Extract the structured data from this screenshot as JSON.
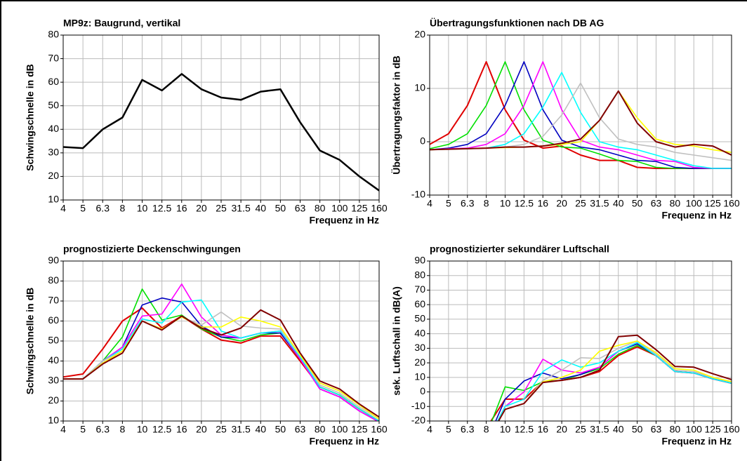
{
  "chart_data": [
    {
      "type": "line",
      "title": "MP9z: Baugrund, vertikal",
      "x_label": "Frequenz in Hz",
      "y_label": "Schwingschnelle in dB",
      "categories": [
        "4",
        "5",
        "6.3",
        "8",
        "10",
        "12.5",
        "16",
        "20",
        "25",
        "31.5",
        "40",
        "50",
        "63",
        "80",
        "100",
        "125",
        "160"
      ],
      "ylim": [
        10,
        80
      ],
      "yticks": [
        10,
        20,
        30,
        40,
        50,
        60,
        70,
        80
      ],
      "grid": true,
      "series": [
        {
          "color": "#000000",
          "values": [
            32.5,
            32,
            40,
            45,
            61,
            56.5,
            63.5,
            57,
            53.5,
            52.5,
            56,
            57,
            43,
            31,
            27,
            20,
            14
          ]
        }
      ]
    },
    {
      "type": "line",
      "title": "Übertragungsfunktionen nach DB AG",
      "x_label": "Frequenz in Hz",
      "y_label": "Übertragungsfaktor in dB",
      "categories": [
        "4",
        "5",
        "6.3",
        "8",
        "10",
        "12.5",
        "16",
        "20",
        "25",
        "31.5",
        "40",
        "50",
        "63",
        "80",
        "100",
        "125",
        "160"
      ],
      "ylim": [
        -10,
        20
      ],
      "yticks": [
        -10,
        0,
        10,
        20
      ],
      "grid": true,
      "series": [
        {
          "color": "#e00000",
          "values": [
            -0.5,
            1.5,
            6.8,
            15,
            6,
            0.3,
            -1.2,
            -0.8,
            -2.5,
            -3.5,
            -3.5,
            -4.8,
            -5,
            -5,
            -5,
            -5,
            -5
          ]
        },
        {
          "color": "#00e000",
          "values": [
            -1.3,
            -0.5,
            1.5,
            6.8,
            15,
            6,
            0.3,
            -1,
            -1.2,
            -2.3,
            -3.5,
            -3.7,
            -4.8,
            -5,
            -5,
            -5,
            -5
          ]
        },
        {
          "color": "#0000c0",
          "values": [
            -1.5,
            -1.2,
            -0.5,
            1.5,
            6.8,
            15,
            6,
            0.3,
            -1,
            -1.5,
            -2.5,
            -3.5,
            -3.7,
            -4.8,
            -5,
            -5,
            -5
          ]
        },
        {
          "color": "#ff00ff",
          "values": [
            -1.5,
            -1.3,
            -1.2,
            -0.5,
            1.5,
            6.8,
            15,
            6,
            0.3,
            -1,
            -1.5,
            -2.5,
            -3.5,
            -3.7,
            -4.8,
            -5,
            -5
          ]
        },
        {
          "color": "#00ffff",
          "values": [
            -1.5,
            -1.4,
            -1.3,
            -1.2,
            -0.5,
            1.5,
            6.5,
            13,
            5.5,
            0,
            -1,
            -1.5,
            -2.5,
            -3.5,
            -4.5,
            -5,
            -5
          ]
        },
        {
          "color": "#c0c0c0",
          "values": [
            -1.5,
            -1.4,
            -1.3,
            -1.2,
            -1,
            -0.5,
            1,
            5,
            11,
            4.5,
            0.5,
            -0.5,
            -1,
            -2,
            -2.5,
            -3,
            -3.5
          ]
        },
        {
          "color": "#ffff00",
          "values": [
            -1.5,
            -1.4,
            -1.3,
            -1.2,
            -1.1,
            -1,
            -0.8,
            -0.5,
            0,
            4,
            9.5,
            4.5,
            0.5,
            -0.5,
            -0.8,
            -1.5,
            -2
          ]
        },
        {
          "color": "#800000",
          "values": [
            -1.5,
            -1.4,
            -1.3,
            -1.2,
            -1,
            -1,
            -0.8,
            -0.3,
            0.5,
            4,
            9.5,
            3.5,
            0,
            -1,
            -0.5,
            -0.8,
            -2.5
          ]
        }
      ]
    },
    {
      "type": "line",
      "title": "prognostizierte Deckenschwingungen",
      "x_label": "Frequenz in Hz",
      "y_label": "Schwingschnelle in dB",
      "categories": [
        "4",
        "5",
        "6.3",
        "8",
        "10",
        "12.5",
        "16",
        "20",
        "25",
        "31.5",
        "40",
        "50",
        "63",
        "80",
        "100",
        "125",
        "160"
      ],
      "ylim": [
        10,
        90
      ],
      "yticks": [
        10,
        20,
        30,
        40,
        50,
        60,
        70,
        80,
        90
      ],
      "grid": true,
      "series": [
        {
          "color": "#e00000",
          "values": [
            32,
            33.5,
            46,
            60,
            66.5,
            56.5,
            62.5,
            56,
            50.5,
            49,
            52.5,
            52.5,
            40,
            27,
            23,
            16,
            10
          ]
        },
        {
          "color": "#00e000",
          "values": [
            31,
            31,
            40,
            52,
            76,
            60.5,
            63,
            56,
            52,
            50,
            53,
            54,
            41,
            27,
            23,
            16,
            10
          ]
        },
        {
          "color": "#0000c0",
          "values": [
            31,
            31,
            40,
            47,
            68,
            71.5,
            69.5,
            57.5,
            52,
            51.5,
            54,
            54,
            41,
            26,
            22,
            15,
            9.5
          ]
        },
        {
          "color": "#ff00ff",
          "values": [
            31,
            31,
            40,
            47,
            62.5,
            63.5,
            78.5,
            62,
            53,
            51.5,
            54,
            55,
            41,
            26,
            22,
            15,
            9.5
          ]
        },
        {
          "color": "#00ffff",
          "values": [
            31,
            31,
            40,
            46,
            61,
            59,
            69.5,
            70.5,
            55,
            51.5,
            54,
            55,
            42,
            27,
            23,
            16,
            10
          ]
        },
        {
          "color": "#c0c0c0",
          "values": [
            31,
            31,
            40,
            45,
            60,
            56,
            62,
            58,
            64.5,
            57.5,
            56.5,
            56,
            43,
            28,
            24,
            17,
            11
          ]
        },
        {
          "color": "#ffff00",
          "values": [
            31,
            31,
            39,
            45,
            60,
            56,
            62,
            57,
            57,
            62,
            60,
            57,
            43,
            29,
            25,
            18,
            11
          ]
        },
        {
          "color": "#800000",
          "values": [
            31,
            31,
            38.5,
            44,
            60,
            55.5,
            62.5,
            56.5,
            53,
            56.5,
            65.5,
            60.5,
            44,
            30,
            26,
            18.5,
            12
          ]
        }
      ]
    },
    {
      "type": "line",
      "title": "prognostizierter sekundärer Luftschall",
      "x_label": "Frequenz in Hz",
      "y_label": "sek. Luftschall in dB(A)",
      "categories": [
        "4",
        "5",
        "6.3",
        "8",
        "10",
        "12.5",
        "16",
        "20",
        "25",
        "31.5",
        "40",
        "50",
        "63",
        "80",
        "100",
        "125",
        "160"
      ],
      "ylim": [
        -20,
        90
      ],
      "yticks": [
        -20,
        -10,
        0,
        10,
        20,
        30,
        40,
        50,
        60,
        70,
        80,
        90
      ],
      "grid": true,
      "series": [
        {
          "color": "#e00000",
          "values": [
            null,
            null,
            null,
            -25,
            -5,
            -5,
            7,
            8,
            10,
            14,
            25,
            31,
            25,
            14,
            13,
            9,
            6
          ]
        },
        {
          "color": "#00e000",
          "values": [
            null,
            null,
            null,
            -30,
            3.5,
            1,
            7,
            8,
            12,
            16,
            26,
            32,
            25,
            14,
            13,
            9,
            6
          ]
        },
        {
          "color": "#0000c0",
          "values": [
            null,
            null,
            null,
            -35,
            -5,
            7.5,
            13,
            9,
            12,
            17,
            28,
            33,
            25,
            14,
            13,
            9,
            6
          ]
        },
        {
          "color": "#ff00ff",
          "values": [
            null,
            null,
            null,
            -35,
            -10,
            0,
            22.5,
            15,
            13,
            17,
            28,
            34,
            25,
            14,
            13,
            9,
            6
          ]
        },
        {
          "color": "#00ffff",
          "values": [
            null,
            null,
            null,
            -35,
            -10,
            -5,
            14,
            22,
            17,
            20,
            28,
            34,
            25,
            14,
            13,
            9,
            6
          ]
        },
        {
          "color": "#c0c0c0",
          "values": [
            null,
            null,
            null,
            -35,
            -12,
            -8,
            8,
            15,
            23.5,
            23,
            30,
            35,
            26,
            15,
            14,
            10,
            7
          ]
        },
        {
          "color": "#ffff00",
          "values": [
            null,
            null,
            null,
            -35,
            -12,
            -8,
            7,
            10,
            15,
            28,
            32,
            35,
            27,
            16,
            15,
            10,
            7
          ]
        },
        {
          "color": "#800000",
          "values": [
            null,
            null,
            null,
            -35,
            -12,
            -8,
            6.5,
            8,
            10,
            15,
            38,
            39,
            29,
            17.5,
            17,
            12.5,
            8.5
          ]
        }
      ]
    }
  ]
}
